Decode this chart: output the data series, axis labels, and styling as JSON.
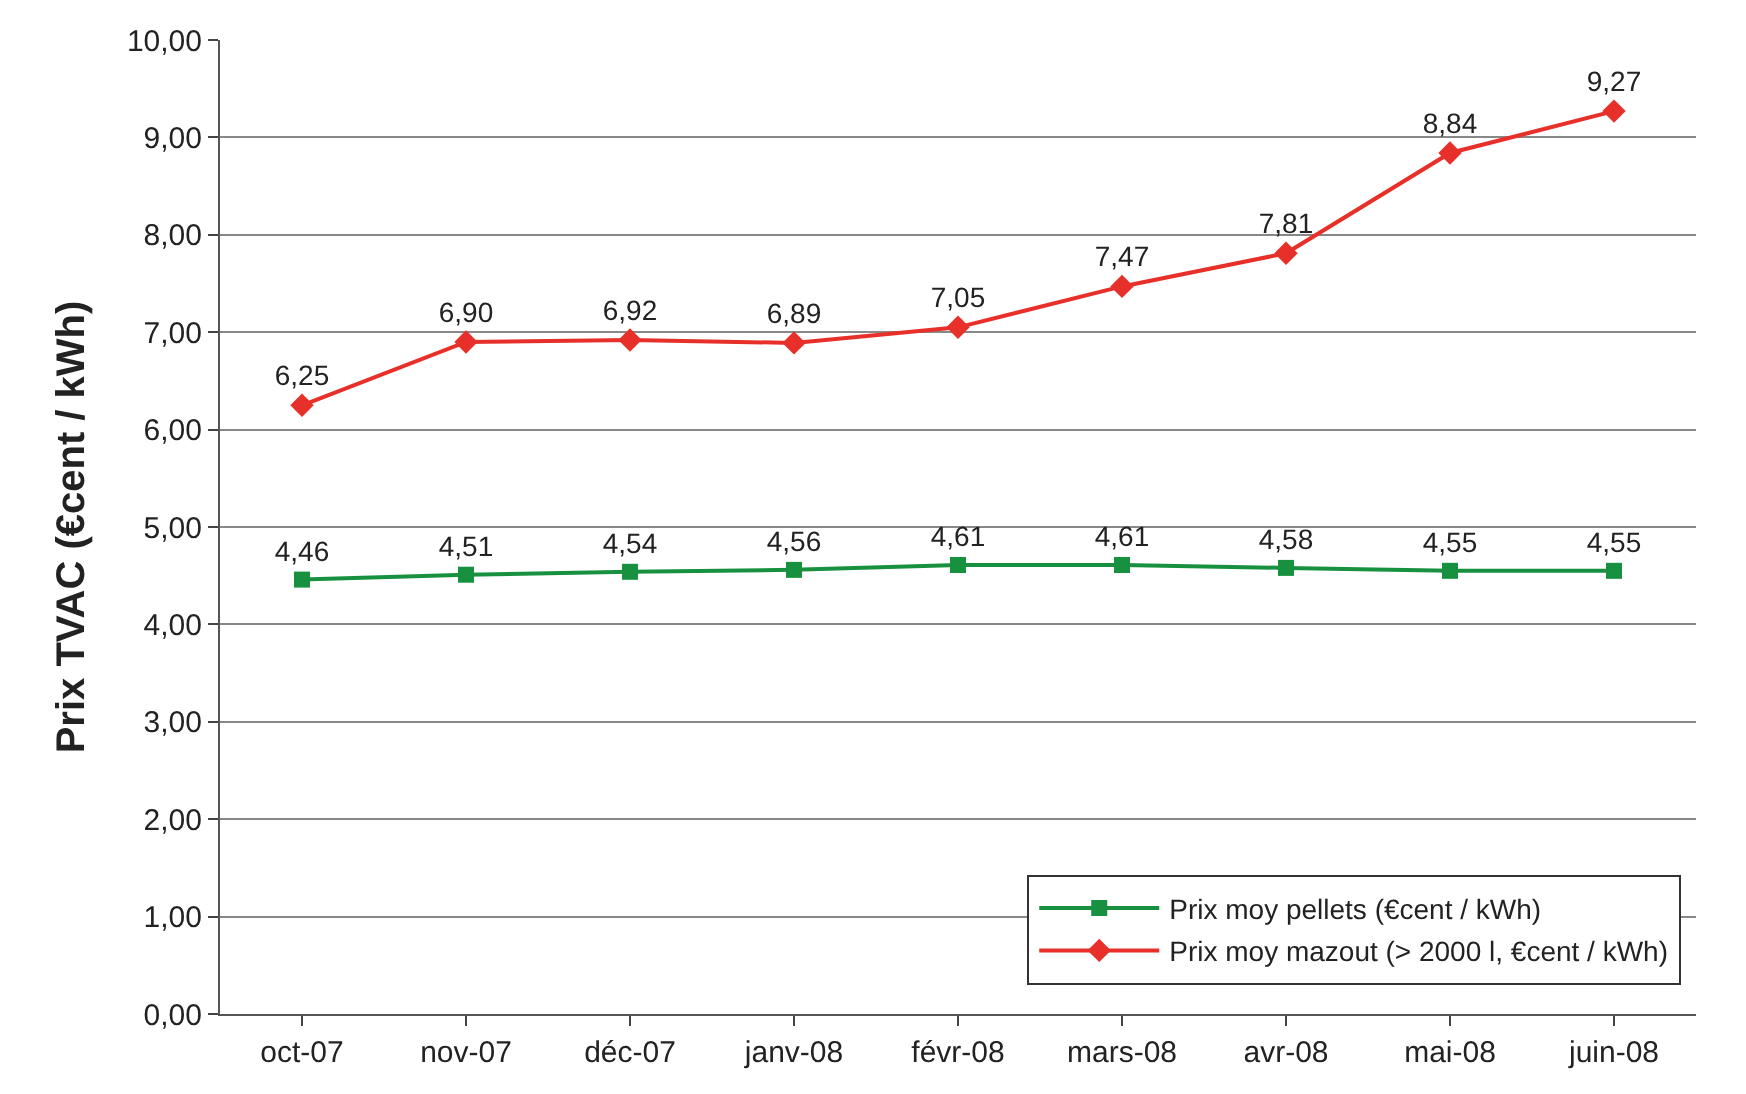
{
  "chart_data": {
    "type": "line",
    "ylabel": "Prix TVAC (€cent / kWh)",
    "categories": [
      "oct-07",
      "nov-07",
      "déc-07",
      "janv-08",
      "févr-08",
      "mars-08",
      "avr-08",
      "mai-08",
      "juin-08"
    ],
    "series": [
      {
        "name": "Prix moy pellets (€cent / kWh)",
        "color": "#17913f",
        "marker": "square",
        "values": [
          4.46,
          4.51,
          4.54,
          4.56,
          4.61,
          4.61,
          4.58,
          4.55,
          4.55
        ],
        "value_labels": [
          "4,46",
          "4,51",
          "4,54",
          "4,56",
          "4,61",
          "4,61",
          "4,58",
          "4,55",
          "4,55"
        ]
      },
      {
        "name": "Prix moy mazout (> 2000 l, €cent / kWh)",
        "color": "#e8302a",
        "marker": "diamond",
        "values": [
          6.25,
          6.9,
          6.92,
          6.89,
          7.05,
          7.47,
          7.81,
          8.84,
          9.27
        ],
        "value_labels": [
          "6,25",
          "6,90",
          "6,92",
          "6,89",
          "7,05",
          "7,47",
          "7,81",
          "8,84",
          "9,27"
        ]
      }
    ],
    "ylim": [
      0,
      10
    ],
    "yticks": [
      {
        "value": 0,
        "label": "0,00"
      },
      {
        "value": 1,
        "label": "1,00"
      },
      {
        "value": 2,
        "label": "2,00"
      },
      {
        "value": 3,
        "label": "3,00"
      },
      {
        "value": 4,
        "label": "4,00"
      },
      {
        "value": 5,
        "label": "5,00"
      },
      {
        "value": 6,
        "label": "6,00"
      },
      {
        "value": 7,
        "label": "7,00"
      },
      {
        "value": 8,
        "label": "8,00"
      },
      {
        "value": 9,
        "label": "9,00"
      },
      {
        "value": 10,
        "label": "10,00"
      }
    ],
    "grid": "y",
    "legend": "bottom right",
    "line_style": "solid"
  }
}
